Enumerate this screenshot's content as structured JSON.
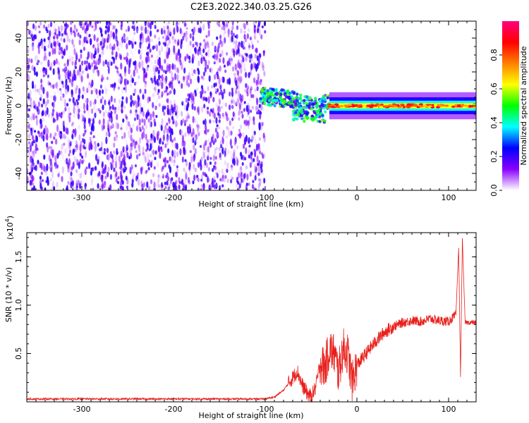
{
  "chart_data": [
    {
      "type": "heatmap",
      "title": "C2E3.2022.340.03.25.G26",
      "xlabel": "Height of straight line (km)",
      "ylabel": "Frequency (Hz)",
      "xlim": [
        -360,
        130
      ],
      "ylim": [
        -50,
        50
      ],
      "xticks": [
        -300,
        -200,
        -100,
        0,
        100
      ],
      "yticks": [
        -40,
        -20,
        0,
        20,
        40
      ],
      "colorbar": {
        "label": "Normalized spectral amplitude",
        "range": [
          0,
          1
        ],
        "ticks": [
          "0.0",
          "0.2",
          "0.4",
          "0.6",
          "0.8"
        ],
        "tick_values": [
          0.0,
          0.2,
          0.4,
          0.6,
          0.8
        ],
        "colors": [
          "#ffffff",
          "#8a00ff",
          "#0000ff",
          "#00ffff",
          "#00ff00",
          "#ffff00",
          "#ff8000",
          "#ff0000",
          "#ff0080"
        ]
      },
      "regions": [
        {
          "x_range": [
            -360,
            -100
          ],
          "y_range": [
            -50,
            50
          ],
          "amplitude": 0.1,
          "pattern": "noise"
        },
        {
          "x_range": [
            -105,
            -30
          ],
          "center_freq": [
            6,
            1
          ],
          "amplitude": 0.45,
          "pattern": "descending-band"
        },
        {
          "x_range": [
            -30,
            130
          ],
          "center_freq": [
            0,
            0
          ],
          "amplitude": 0.9,
          "pattern": "tone"
        }
      ]
    },
    {
      "type": "line",
      "xlabel": "Height of straight line (km)",
      "ylabel": "SNR (10 * v/v)",
      "scale_label": "(x10",
      "scale_exp": "4",
      "scale_close": ")",
      "xlim": [
        -360,
        130
      ],
      "ylim": [
        0,
        1.75
      ],
      "xticks": [
        -300,
        -200,
        -100,
        0,
        100
      ],
      "yticks": [
        "0.5",
        "1.0",
        "1.5"
      ],
      "ytick_values": [
        0.5,
        1.0,
        1.5
      ],
      "series": [
        {
          "color": "#e8201c",
          "points": [
            [
              -360,
              0.03
            ],
            [
              -300,
              0.03
            ],
            [
              -200,
              0.03
            ],
            [
              -100,
              0.03
            ],
            [
              -90,
              0.05
            ],
            [
              -80,
              0.12
            ],
            [
              -70,
              0.25
            ],
            [
              -65,
              0.32
            ],
            [
              -60,
              0.18
            ],
            [
              -55,
              0.1
            ],
            [
              -50,
              0.05
            ],
            [
              -45,
              0.15
            ],
            [
              -40,
              0.4
            ],
            [
              -35,
              0.35
            ],
            [
              -30,
              0.55
            ],
            [
              -25,
              0.5
            ],
            [
              -20,
              0.3
            ],
            [
              -15,
              0.55
            ],
            [
              -10,
              0.5
            ],
            [
              -5,
              0.2
            ],
            [
              0,
              0.38
            ],
            [
              10,
              0.5
            ],
            [
              20,
              0.62
            ],
            [
              30,
              0.72
            ],
            [
              40,
              0.78
            ],
            [
              50,
              0.82
            ],
            [
              60,
              0.84
            ],
            [
              70,
              0.83
            ],
            [
              80,
              0.86
            ],
            [
              90,
              0.84
            ],
            [
              100,
              0.83
            ],
            [
              108,
              0.9
            ],
            [
              111,
              1.6
            ],
            [
              113,
              0.25
            ],
            [
              115,
              1.7
            ],
            [
              118,
              0.82
            ],
            [
              130,
              0.82
            ]
          ]
        }
      ]
    }
  ]
}
